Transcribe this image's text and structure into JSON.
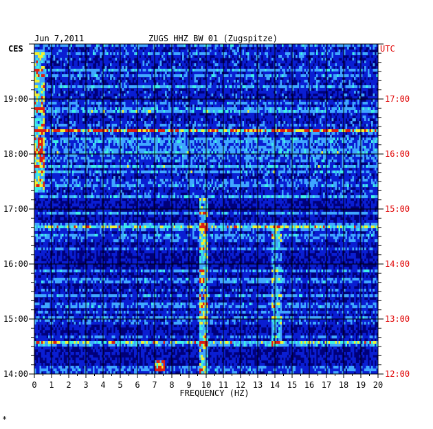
{
  "header": {
    "date": "Jun 7,2011",
    "station": "ZUGS HHZ BW 01 (Zugspitze)",
    "left_tz": "CES",
    "right_tz": "UTC"
  },
  "footer": {
    "xlabel": "FREQUENCY (HZ)",
    "mark": "*"
  },
  "chart_data": {
    "type": "heatmap",
    "title": "ZUGS HHZ BW 01 (Zugspitze)",
    "xlabel": "FREQUENCY (HZ)",
    "xlim": [
      0,
      20
    ],
    "x_ticks": [
      "0",
      "1",
      "2",
      "3",
      "4",
      "5",
      "6",
      "7",
      "8",
      "9",
      "10",
      "11",
      "12",
      "13",
      "14",
      "15",
      "16",
      "17",
      "18",
      "19",
      "20"
    ],
    "left_axis": {
      "label": "CES",
      "ticks": [
        {
          "text": "19:00",
          "hour": 19
        },
        {
          "text": "18:00",
          "hour": 18
        },
        {
          "text": "17:00",
          "hour": 17
        },
        {
          "text": "16:00",
          "hour": 16
        },
        {
          "text": "15:00",
          "hour": 15
        },
        {
          "text": "14:00",
          "hour": 14
        }
      ]
    },
    "right_axis": {
      "label": "UTC",
      "ticks": [
        {
          "text": "17:00",
          "hour": 17
        },
        {
          "text": "16:00",
          "hour": 16
        },
        {
          "text": "15:00",
          "hour": 15
        },
        {
          "text": "14:00",
          "hour": 14
        },
        {
          "text": "13:00",
          "hour": 13
        },
        {
          "text": "12:00",
          "hour": 12
        }
      ],
      "color": "#e00000"
    },
    "time_range_ces_hours": [
      14.0,
      20.0
    ],
    "grid": true,
    "colors": {
      "background": "#00007a",
      "low": "#0a1ed2",
      "mid": "#3fa6ff",
      "high_cyan": "#3cf0e6",
      "yellow": "#f0f032",
      "red": "#dc1e14",
      "grid": "#000000",
      "utc_text": "#e00000"
    },
    "features": [
      {
        "kind": "band",
        "freq_range": [
          9.6,
          10.1
        ],
        "time_range": [
          14.0,
          17.2
        ],
        "intensity": "high"
      },
      {
        "kind": "band",
        "freq_range": [
          0.0,
          0.6
        ],
        "time_range": [
          17.3,
          19.9
        ],
        "intensity": "high"
      },
      {
        "kind": "band",
        "freq_range": [
          13.8,
          14.4
        ],
        "time_range": [
          14.5,
          16.7
        ],
        "intensity": "medium"
      },
      {
        "kind": "spot",
        "freq": 7.3,
        "time": 14.15,
        "intensity": "high"
      },
      {
        "kind": "line",
        "time": 14.57,
        "intensity": "high"
      },
      {
        "kind": "line",
        "time": 16.68,
        "intensity": "medium"
      },
      {
        "kind": "line",
        "time": 18.43,
        "intensity": "high"
      }
    ]
  }
}
